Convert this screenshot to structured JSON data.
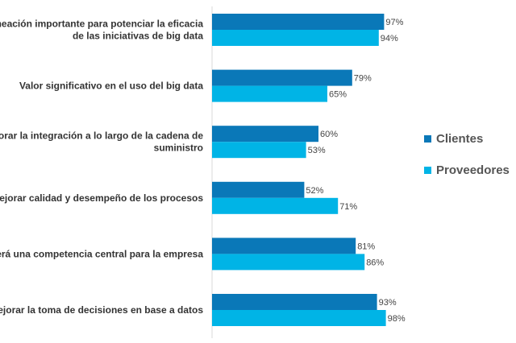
{
  "chart_data": {
    "type": "bar",
    "orientation": "horizontal",
    "categories": [
      [
        "Alineación importante para potenciar la eficacia",
        "de las iniciativas de big data"
      ],
      [
        "Valor significativo en el uso del big data"
      ],
      [
        "Mejorar la integración a lo largo de la cadena de",
        "suministro"
      ],
      [
        "Mejorar calidad y desempeño de los procesos"
      ],
      [
        "Será una competencia central para la empresa"
      ],
      [
        "Mejorar la toma de decisiones en base a datos"
      ]
    ],
    "series": [
      {
        "name": "Clientes",
        "values": [
          97,
          79,
          60,
          52,
          81,
          93
        ],
        "color": "#0a78b8"
      },
      {
        "name": "Proveedores",
        "values": [
          94,
          65,
          53,
          71,
          86,
          98
        ],
        "color": "#00b4e6"
      }
    ],
    "value_suffix": "%",
    "xlim": [
      0,
      100
    ],
    "grid": false,
    "legend_position": "right"
  }
}
